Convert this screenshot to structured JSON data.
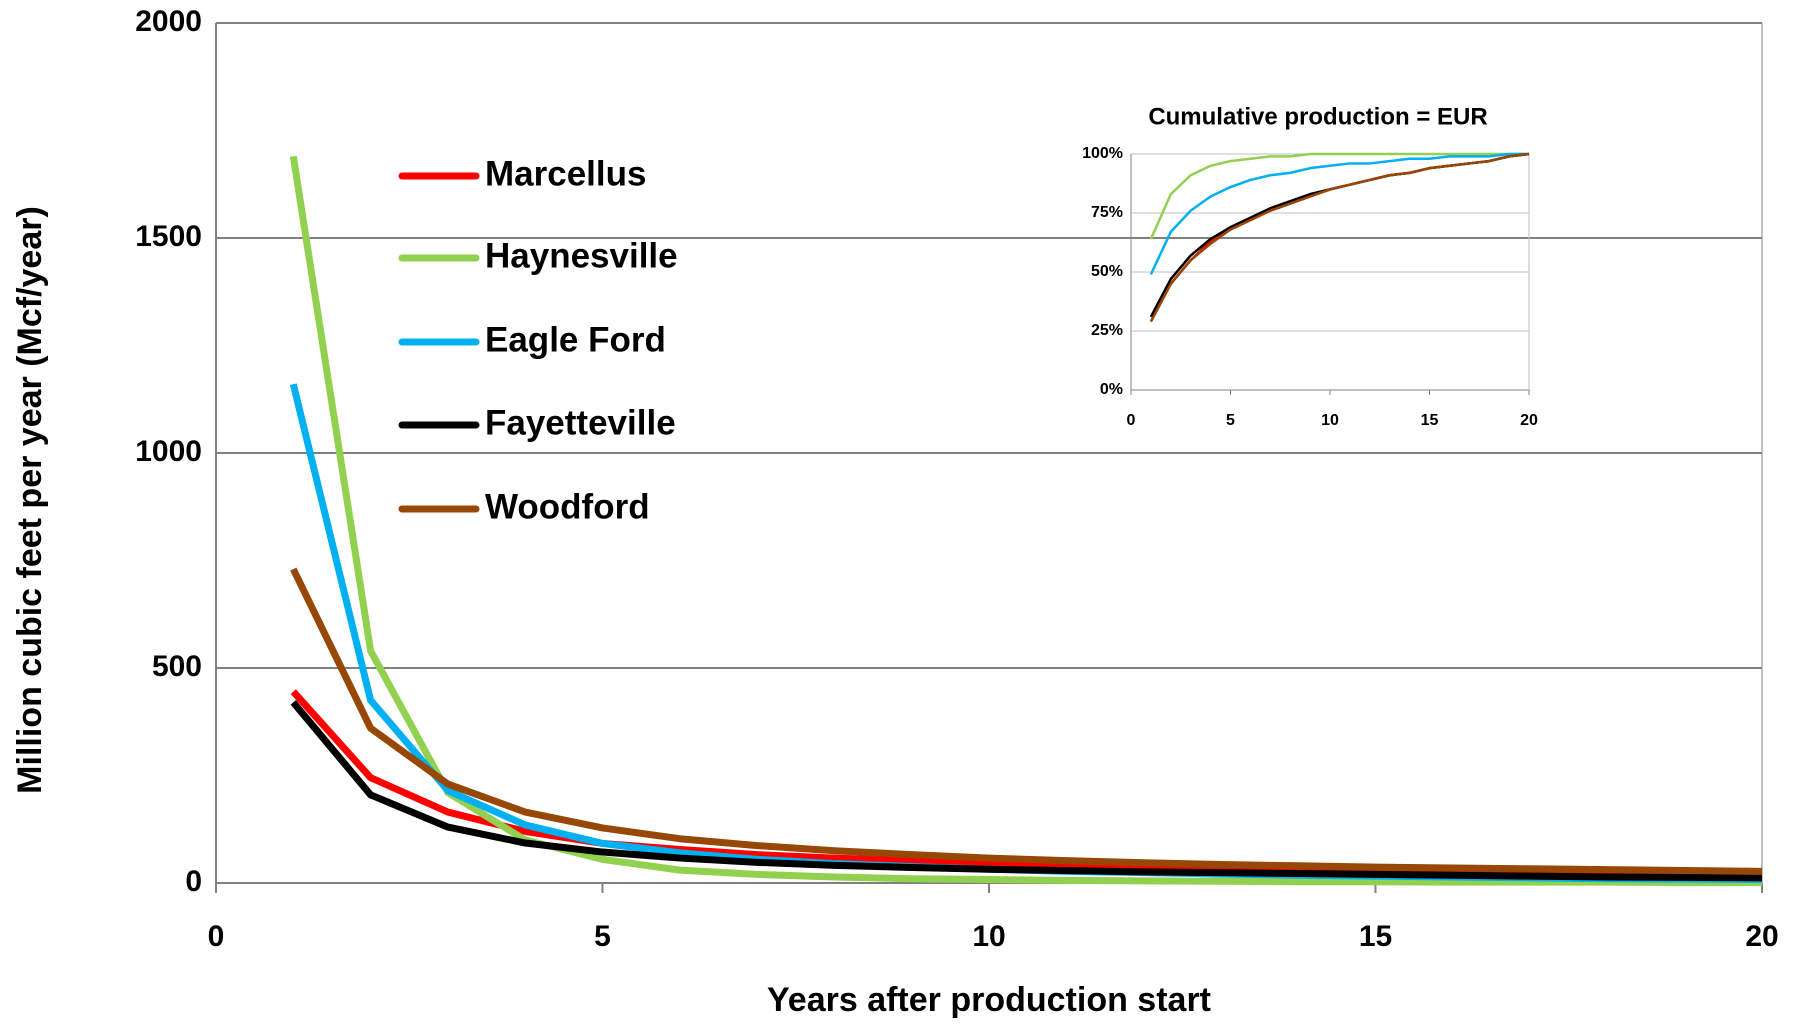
{
  "chart_data": [
    {
      "type": "line",
      "x_label": "Years after production start",
      "y_label": "Million cubic feet per year (Mcf/year)",
      "x": [
        1,
        2,
        3,
        4,
        5,
        6,
        7,
        8,
        9,
        10,
        11,
        12,
        13,
        14,
        15,
        16,
        17,
        18,
        19,
        20
      ],
      "xlim": [
        0,
        20
      ],
      "xticks": [
        0,
        5,
        10,
        15,
        20
      ],
      "ylim": [
        0,
        2000
      ],
      "yticks": [
        0,
        500,
        1000,
        1500,
        2000
      ],
      "grid": true,
      "series": [
        {
          "name": "Marcellus",
          "color": "#ff0000",
          "values": [
            445,
            245,
            165,
            120,
            92,
            78,
            66,
            58,
            52,
            47,
            43,
            39,
            36,
            33,
            30,
            27,
            24,
            21,
            18,
            15
          ]
        },
        {
          "name": "Haynesville",
          "color": "#92d050",
          "values": [
            1690,
            540,
            210,
            100,
            55,
            30,
            20,
            14,
            10,
            8,
            6,
            5,
            4,
            3,
            3,
            2,
            2,
            2,
            1,
            1
          ]
        },
        {
          "name": "Eagle Ford",
          "color": "#00b0f0",
          "values": [
            1160,
            425,
            215,
            135,
            92,
            70,
            55,
            45,
            38,
            32,
            27,
            24,
            21,
            18,
            16,
            14,
            12,
            10,
            9,
            8
          ]
        },
        {
          "name": "Fayetteville",
          "color": "#000000",
          "values": [
            420,
            205,
            130,
            93,
            72,
            58,
            48,
            41,
            36,
            32,
            29,
            26,
            24,
            22,
            20,
            18,
            16,
            14,
            13,
            12
          ]
        },
        {
          "name": "Woodford",
          "color": "#974706",
          "values": [
            730,
            360,
            230,
            165,
            128,
            103,
            87,
            75,
            66,
            58,
            52,
            47,
            43,
            40,
            37,
            35,
            33,
            31,
            29,
            27
          ]
        }
      ]
    },
    {
      "type": "line",
      "title": "Cumulative production = EUR",
      "x": [
        1,
        2,
        3,
        4,
        5,
        6,
        7,
        8,
        9,
        10,
        11,
        12,
        13,
        14,
        15,
        16,
        17,
        18,
        19,
        20
      ],
      "xlim": [
        0,
        20
      ],
      "xticks": [
        0,
        5,
        10,
        15,
        20
      ],
      "ylim": [
        0,
        100
      ],
      "yticks": [
        {
          "value": 0,
          "label": "0%"
        },
        {
          "value": 25,
          "label": "25%"
        },
        {
          "value": 50,
          "label": "50%"
        },
        {
          "value": 75,
          "label": "75%"
        },
        {
          "value": 100,
          "label": "100%"
        }
      ],
      "grid": true,
      "series": [
        {
          "color": "#ff0000",
          "values": [
            29,
            45,
            55,
            63,
            68,
            72,
            76,
            79,
            82,
            85,
            87,
            89,
            91,
            92,
            94,
            95,
            96,
            97,
            99,
            100
          ]
        },
        {
          "color": "#92d050",
          "values": [
            64,
            83,
            91,
            95,
            97,
            98,
            99,
            99,
            100,
            100,
            100,
            100,
            100,
            100,
            100,
            100,
            100,
            100,
            100,
            100
          ]
        },
        {
          "color": "#00b0f0",
          "values": [
            49,
            67,
            76,
            82,
            86,
            89,
            91,
            92,
            94,
            95,
            96,
            96,
            97,
            98,
            98,
            99,
            99,
            99,
            100,
            100
          ]
        },
        {
          "color": "#000000",
          "values": [
            31,
            47,
            57,
            64,
            69,
            73,
            77,
            80,
            83,
            85,
            87,
            89,
            91,
            92,
            94,
            95,
            96,
            97,
            99,
            100
          ]
        },
        {
          "color": "#974706",
          "values": [
            29,
            45,
            55,
            62,
            68,
            72,
            76,
            79,
            82,
            85,
            87,
            89,
            91,
            92,
            94,
            95,
            96,
            97,
            99,
            100
          ]
        }
      ]
    }
  ]
}
